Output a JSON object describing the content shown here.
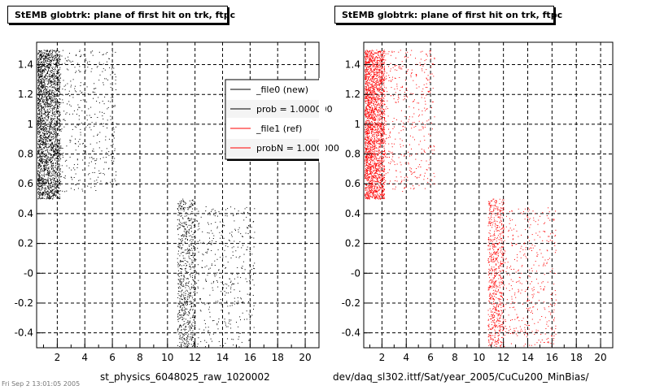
{
  "footer": "Fri Sep  2 13:01:05 2005",
  "chart_data": [
    {
      "type": "scatter",
      "title": "StEMB globtrk: plane of first hit on trk, ftpc",
      "xlabel": "st_physics_6048025_raw_1020002",
      "ylabel": "",
      "xlim": [
        0.5,
        21
      ],
      "ylim": [
        -0.5,
        1.55
      ],
      "x_ticks": [
        2,
        4,
        6,
        8,
        10,
        12,
        14,
        16,
        18,
        20
      ],
      "y_ticks": [
        -0.4,
        -0.2,
        0,
        0.2,
        0.4,
        0.6,
        0.8,
        1,
        1.2,
        1.4
      ],
      "y_tick_labels": [
        "-0.4",
        "-0.2",
        "-0",
        "0.2",
        "0.4",
        "0.6",
        "0.8",
        "1",
        "1.2",
        "1.4"
      ],
      "grid": true,
      "marker_color": "#000000",
      "clusters": [
        {
          "x": [
            0.5,
            2.2
          ],
          "y": [
            0.5,
            1.5
          ],
          "density": "high"
        },
        {
          "x": [
            2.2,
            6.3
          ],
          "y": [
            0.55,
            1.5
          ],
          "density": "low"
        },
        {
          "x": [
            10.7,
            12.0
          ],
          "y": [
            -0.5,
            0.5
          ],
          "density": "medium"
        },
        {
          "x": [
            12.0,
            16.3
          ],
          "y": [
            -0.5,
            0.45
          ],
          "density": "low"
        }
      ],
      "legend": {
        "placement": "top-right",
        "entries": [
          {
            "label": "_file0 (new)",
            "color": "#000000"
          },
          {
            "label": "prob = 1.000000",
            "color": "#000000"
          },
          {
            "label": "_file1 (ref)",
            "color": "#ff0000"
          },
          {
            "label": "probN = 1.000000",
            "color": "#ff0000"
          }
        ]
      }
    },
    {
      "type": "scatter",
      "title": "StEMB globtrk: plane of first hit on trk, ftpc",
      "xlabel": "dev/daq_sl302.ittf/Sat/year_2005/CuCu200_MinBias/",
      "ylabel": "",
      "xlim": [
        0.5,
        21
      ],
      "ylim": [
        -0.5,
        1.55
      ],
      "x_ticks": [
        2,
        4,
        6,
        8,
        10,
        12,
        14,
        16,
        18,
        20
      ],
      "y_ticks": [
        -0.4,
        -0.2,
        0,
        0.2,
        0.4,
        0.6,
        0.8,
        1,
        1.2,
        1.4
      ],
      "y_tick_labels": [
        "-0.4",
        "-0.2",
        "-0",
        "0.2",
        "0.4",
        "0.6",
        "0.8",
        "1",
        "1.2",
        "1.4"
      ],
      "grid": true,
      "marker_color": "#ff0000",
      "clusters": [
        {
          "x": [
            0.5,
            2.2
          ],
          "y": [
            0.5,
            1.5
          ],
          "density": "high"
        },
        {
          "x": [
            2.2,
            6.3
          ],
          "y": [
            0.55,
            1.5
          ],
          "density": "low"
        },
        {
          "x": [
            10.7,
            12.0
          ],
          "y": [
            -0.5,
            0.5
          ],
          "density": "medium"
        },
        {
          "x": [
            12.0,
            16.3
          ],
          "y": [
            -0.5,
            0.45
          ],
          "density": "low"
        }
      ]
    }
  ]
}
